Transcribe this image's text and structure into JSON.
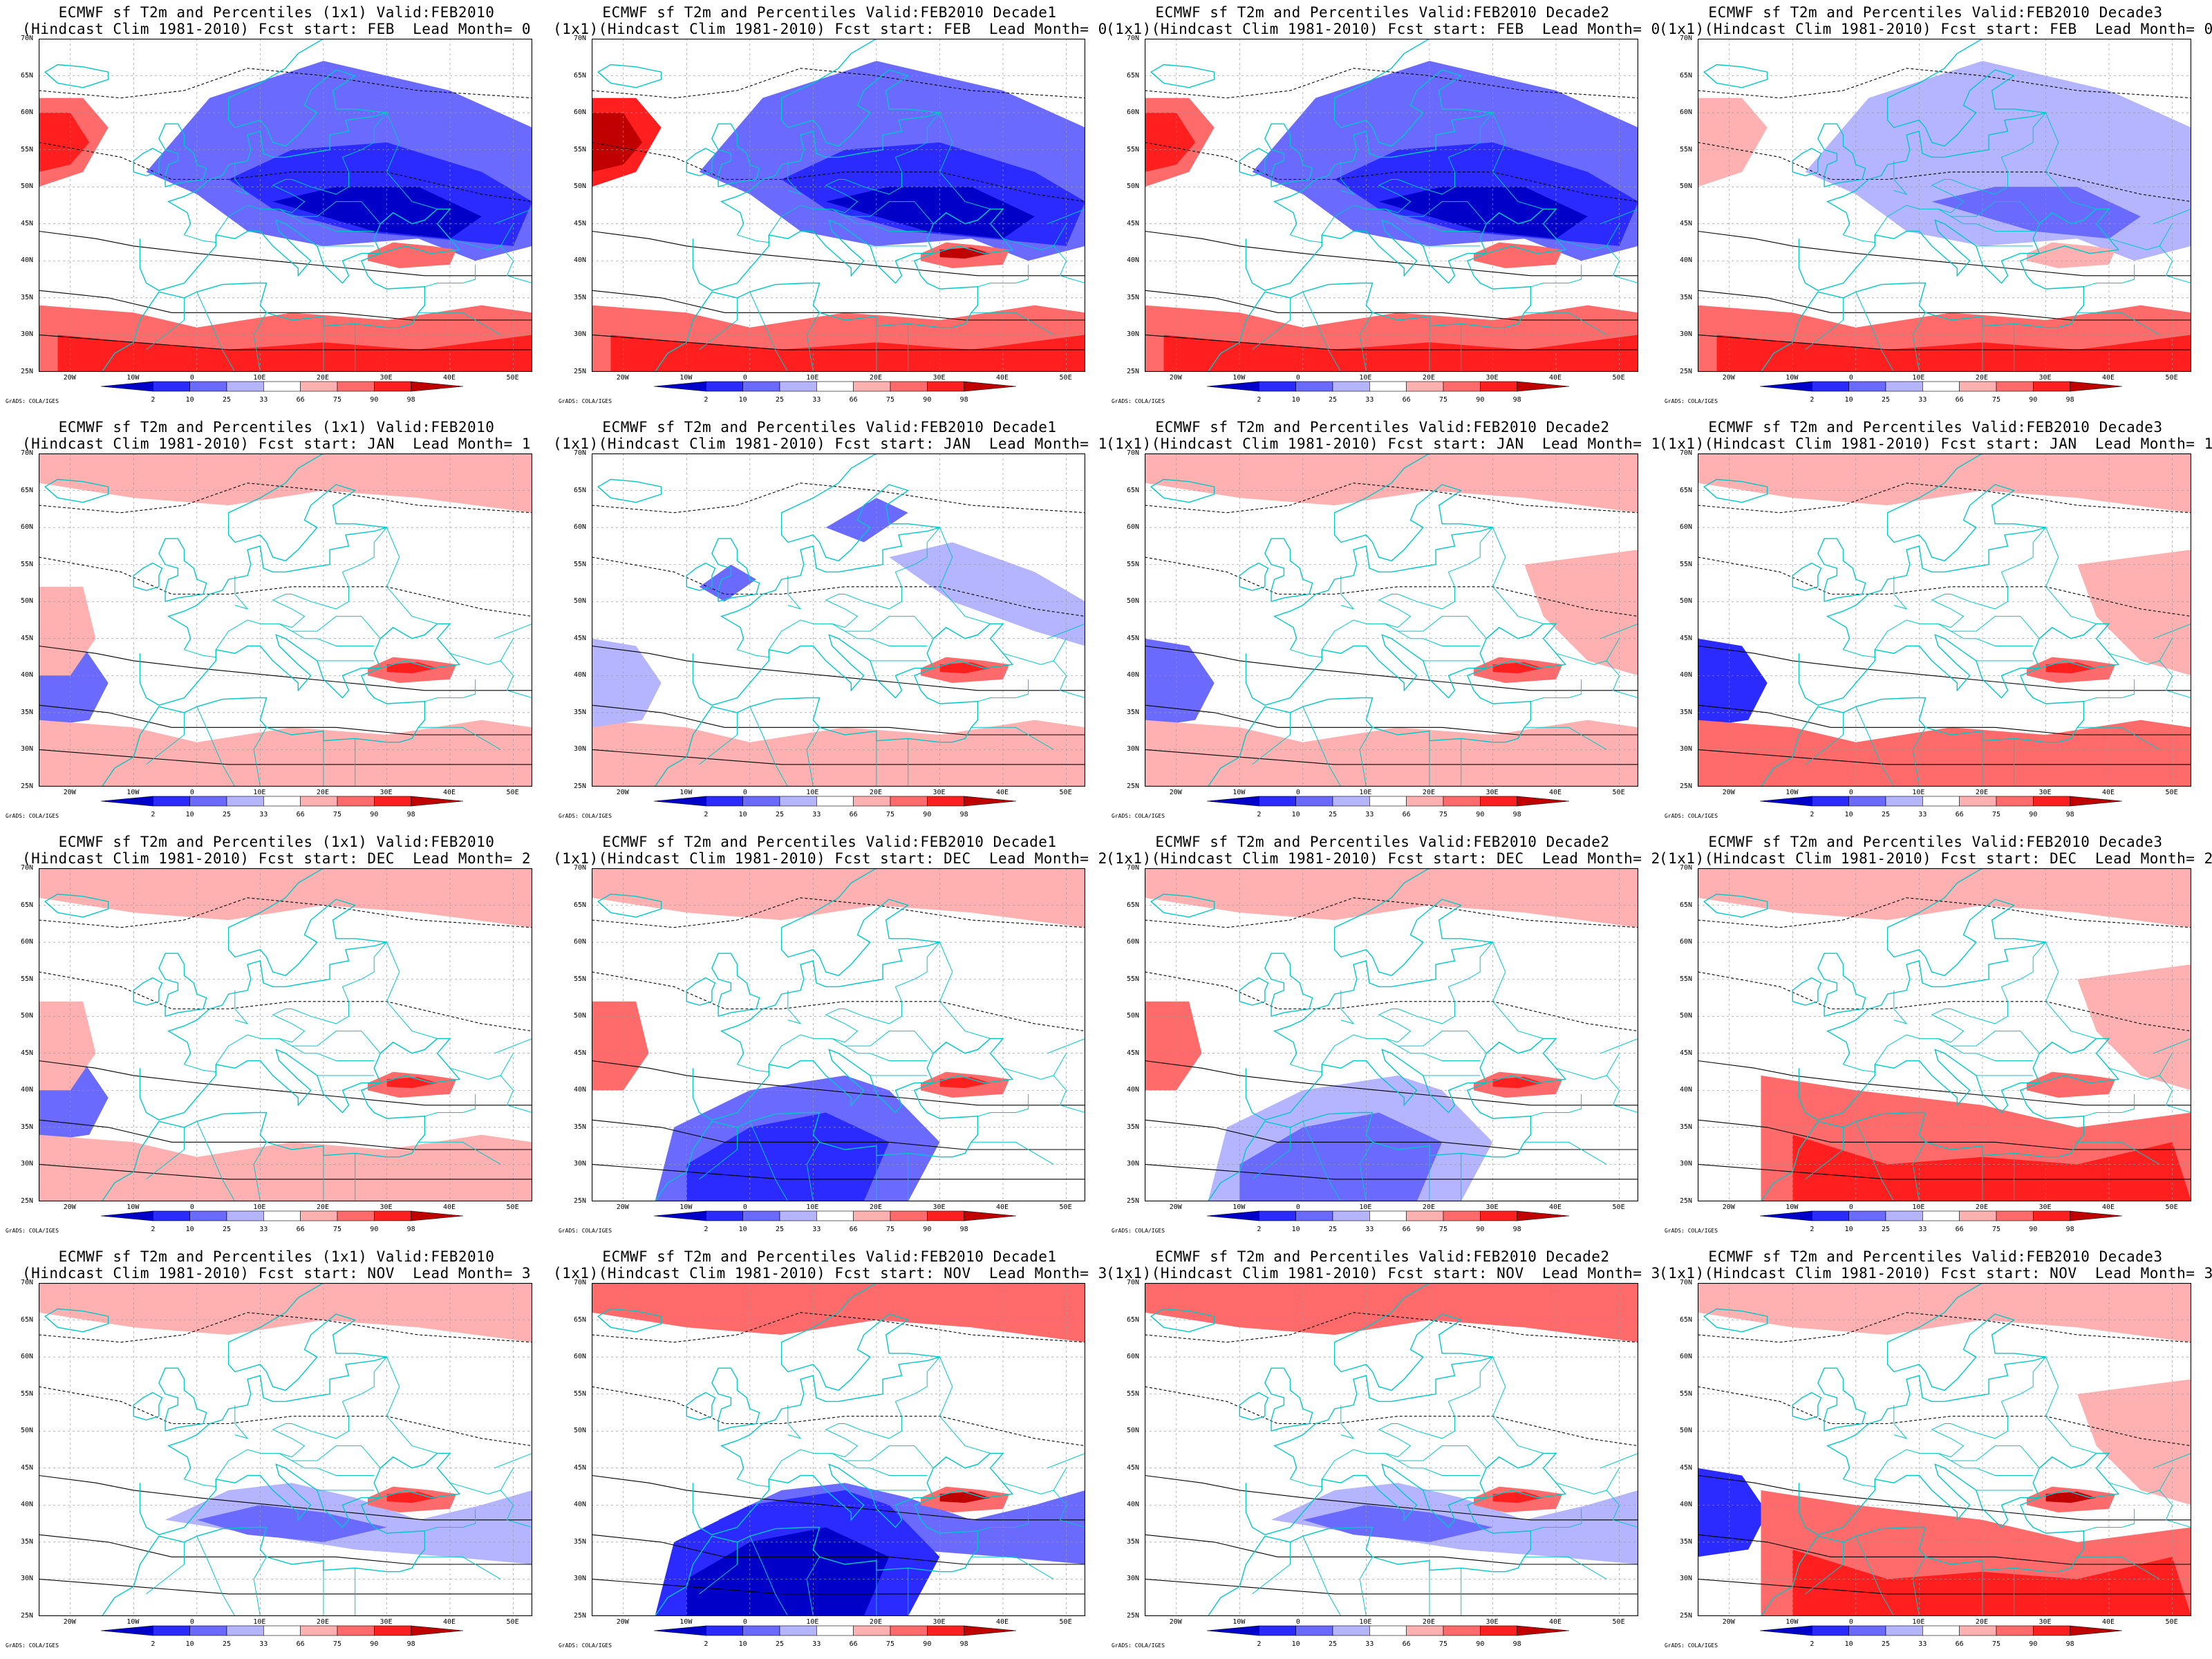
{
  "figure": {
    "axes": {
      "lon_ticks": [
        "20W",
        "10W",
        "0",
        "10E",
        "20E",
        "30E",
        "40E",
        "50E"
      ],
      "lat_ticks": [
        "25N",
        "30N",
        "35N",
        "40N",
        "45N",
        "50N",
        "55N",
        "60N",
        "65N",
        "70N"
      ]
    },
    "colorbar": {
      "ticks": [
        "2",
        "10",
        "25",
        "33",
        "66",
        "75",
        "90",
        "98"
      ],
      "colors": [
        "#0000c8",
        "#2b2bff",
        "#6a6aff",
        "#b4b4ff",
        "#ffffff",
        "#ffb0b0",
        "#ff6a6a",
        "#ff1f1f",
        "#c00000"
      ]
    },
    "credit": "GrADS: COLA/IGES",
    "colors": {
      "coast": "#00c8c8",
      "contour": "#000000",
      "grid": "#9a9a9a"
    },
    "panels": [
      {
        "line1": "ECMWF sf T2m and Percentiles (1x1) Valid:FEB2010",
        "line2": "(Hindcast Clim 1981-2010) Fcst start: FEB  Lead Month= 0",
        "pattern": "cold-europe-warm-sahara"
      },
      {
        "line1": "ECMWF sf T2m and Percentiles Valid:FEB2010 Decade1",
        "line2": "(1x1)(Hindcast Clim 1981-2010) Fcst start: FEB  Lead Month= 0",
        "pattern": "cold-europe-warm-sahara-strong"
      },
      {
        "line1": "ECMWF sf T2m and Percentiles Valid:FEB2010 Decade2",
        "line2": "(1x1)(Hindcast Clim 1981-2010) Fcst start: FEB  Lead Month= 0",
        "pattern": "cold-europe-warm-sahara"
      },
      {
        "line1": "ECMWF sf T2m and Percentiles Valid:FEB2010 Decade3",
        "line2": "(1x1)(Hindcast Clim 1981-2010) Fcst start: FEB  Lead Month= 0",
        "pattern": "mild-cold-warm-south"
      },
      {
        "line1": "ECMWF sf T2m and Percentiles (1x1) Valid:FEB2010",
        "line2": "(Hindcast Clim 1981-2010) Fcst start: JAN  Lead Month= 1",
        "pattern": "weak-mixed"
      },
      {
        "line1": "ECMWF sf T2m and Percentiles Valid:FEB2010 Decade1",
        "line2": "(1x1)(Hindcast Clim 1981-2010) Fcst start: JAN  Lead Month= 1",
        "pattern": "weak-cold-north"
      },
      {
        "line1": "ECMWF sf T2m and Percentiles Valid:FEB2010 Decade2",
        "line2": "(1x1)(Hindcast Clim 1981-2010) Fcst start: JAN  Lead Month= 1",
        "pattern": "warm-east-cold-atlantic"
      },
      {
        "line1": "ECMWF sf T2m and Percentiles Valid:FEB2010 Decade3",
        "line2": "(1x1)(Hindcast Clim 1981-2010) Fcst start: JAN  Lead Month= 1",
        "pattern": "warm-south-east"
      },
      {
        "line1": "ECMWF sf T2m and Percentiles (1x1) Valid:FEB2010",
        "line2": "(Hindcast Clim 1981-2010) Fcst start: DEC  Lead Month= 2",
        "pattern": "weak-mixed"
      },
      {
        "line1": "ECMWF sf T2m and Percentiles Valid:FEB2010 Decade1",
        "line2": "(1x1)(Hindcast Clim 1981-2010) Fcst start: DEC  Lead Month= 2",
        "pattern": "cold-sahara"
      },
      {
        "line1": "ECMWF sf T2m and Percentiles Valid:FEB2010 Decade2",
        "line2": "(1x1)(Hindcast Clim 1981-2010) Fcst start: DEC  Lead Month= 2",
        "pattern": "cold-sahara-weak"
      },
      {
        "line1": "ECMWF sf T2m and Percentiles Valid:FEB2010 Decade3",
        "line2": "(1x1)(Hindcast Clim 1981-2010) Fcst start: DEC  Lead Month= 2",
        "pattern": "warm-south-strong"
      },
      {
        "line1": "ECMWF sf T2m and Percentiles (1x1) Valid:FEB2010",
        "line2": "(Hindcast Clim 1981-2010) Fcst start: NOV  Lead Month= 3",
        "pattern": "weak-cold-med"
      },
      {
        "line1": "ECMWF sf T2m and Percentiles Valid:FEB2010 Decade1",
        "line2": "(1x1)(Hindcast Clim 1981-2010) Fcst start: NOV  Lead Month= 3",
        "pattern": "cold-south-warm-north"
      },
      {
        "line1": "ECMWF sf T2m and Percentiles Valid:FEB2010 Decade2",
        "line2": "(1x1)(Hindcast Clim 1981-2010) Fcst start: NOV  Lead Month= 3",
        "pattern": "mixed-cold-med"
      },
      {
        "line1": "ECMWF sf T2m and Percentiles Valid:FEB2010 Decade3",
        "line2": "(1x1)(Hindcast Clim 1981-2010) Fcst start: NOV  Lead Month= 3",
        "pattern": "warm-south-cold-atlantic"
      }
    ]
  }
}
